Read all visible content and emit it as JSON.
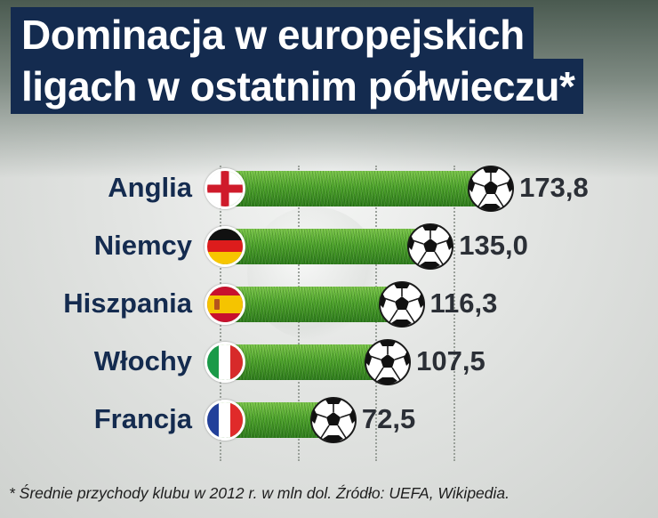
{
  "title": {
    "line1": "Dominacja w europejskich",
    "line2": "ligach w ostatnim półwieczu*"
  },
  "footnote": "* Średnie przychody klubu w 2012 r. w mln dol. Źródło: UEFA, Wikipedia.",
  "colors": {
    "title_bg": "#142b4f",
    "label_text": "#142b4f",
    "value_text": "#2b2f36",
    "bar_green": "#4fa52c"
  },
  "chart_data": {
    "type": "bar",
    "orientation": "horizontal",
    "title": "Dominacja w europejskich ligach w ostatnim półwieczu*",
    "categories": [
      "Anglia",
      "Niemcy",
      "Hiszpania",
      "Włochy",
      "Francja"
    ],
    "values": [
      173.8,
      135.0,
      116.3,
      107.5,
      72.5
    ],
    "value_labels": [
      "173,8",
      "135,0",
      "116,3",
      "107,5",
      "72,5"
    ],
    "flag_icons": [
      "england-flag-icon",
      "germany-flag-icon",
      "spain-flag-icon",
      "italy-flag-icon",
      "france-flag-icon"
    ],
    "bar_end_icon": "soccer-ball-icon",
    "grid": true,
    "legend": "none"
  }
}
